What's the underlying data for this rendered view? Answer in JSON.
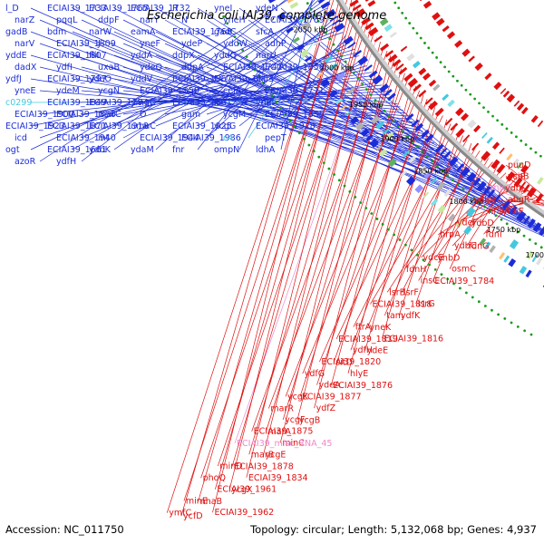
{
  "title": "Escherichia coli IAI39, complete genome",
  "footer": {
    "accession": "Accession: NC_011750",
    "info": "Topology: circular; Length: 5,132,068 bp; Genes: 4,937"
  },
  "colors": {
    "forward": "#1c2cd8",
    "reverse": "#e01010",
    "rna": "#ee88cc",
    "other": "#44c8e0",
    "backbone": "#888888",
    "dots": "#1a9a1a"
  },
  "kbp_labels": [
    "1700 kbp",
    "1750 kbp",
    "1800 kbp",
    "1850 kbp",
    "1900 kbp",
    "1950 kbp",
    "2000 kbp",
    "2050 kbp",
    "2100 kbp"
  ],
  "genes_forward": [
    {
      "name": "l_D",
      "color": "#1c2cd8"
    },
    {
      "name": "ECIAI39_1733",
      "color": "#1c2cd8"
    },
    {
      "name": "ECIAI39_1765",
      "color": "#1c2cd8"
    },
    {
      "name": "ECIAI39_1732",
      "color": "#1c2cd8"
    },
    {
      "name": "R",
      "color": "#1c2cd8"
    },
    {
      "name": "yneI",
      "color": "#1c2cd8"
    },
    {
      "name": "ydeN",
      "color": "#1c2cd8"
    },
    {
      "name": "narZ",
      "color": "#1c2cd8"
    },
    {
      "name": "pqqL",
      "color": "#1c2cd8"
    },
    {
      "name": "ddpF",
      "color": "#1c2cd8"
    },
    {
      "name": "narY",
      "color": "#1c2cd8"
    },
    {
      "name": "N",
      "color": "#1c2cd8"
    },
    {
      "name": "yneH",
      "color": "#1c2cd8"
    },
    {
      "name": "ECIAI39_1769",
      "color": "#1c2cd8"
    },
    {
      "name": "gadB",
      "color": "#1c2cd8"
    },
    {
      "name": "bdm",
      "color": "#1c2cd8"
    },
    {
      "name": "narW",
      "color": "#1c2cd8"
    },
    {
      "name": "eamA",
      "color": "#1c2cd8"
    },
    {
      "name": "ECIAI39_1768",
      "color": "#1c2cd8"
    },
    {
      "name": "gadC",
      "color": "#1c2cd8"
    },
    {
      "name": "sfcA",
      "color": "#1c2cd8"
    },
    {
      "name": "narV",
      "color": "#1c2cd8"
    },
    {
      "name": "ECIAI39_1809",
      "color": "#1c2cd8"
    },
    {
      "name": "J",
      "color": "#1c2cd8"
    },
    {
      "name": "yneF",
      "color": "#1c2cd8"
    },
    {
      "name": "ydeP",
      "color": "#1c2cd8"
    },
    {
      "name": "yddW",
      "color": "#1c2cd8"
    },
    {
      "name": "adhP",
      "color": "#1c2cd8"
    },
    {
      "name": "yddE",
      "color": "#1c2cd8"
    },
    {
      "name": "ECIAI39_1807",
      "color": "#1c2cd8"
    },
    {
      "name": "fliI",
      "color": "#1c2cd8"
    },
    {
      "name": "yddA",
      "color": "#1c2cd8"
    },
    {
      "name": "ddpX",
      "color": "#1c2cd8"
    },
    {
      "name": "yddG",
      "color": "#1c2cd8"
    },
    {
      "name": "narU",
      "color": "#1c2cd8"
    },
    {
      "name": "dadX",
      "color": "#1c2cd8"
    },
    {
      "name": "ydfI",
      "color": "#1c2cd8"
    },
    {
      "name": "uxaB",
      "color": "#1c2cd8"
    },
    {
      "name": "ydeQ",
      "color": "#1c2cd8"
    },
    {
      "name": "ddpA",
      "color": "#1c2cd8"
    },
    {
      "name": "ECIAI39_1741",
      "color": "#1c2cd8"
    },
    {
      "name": "ECIAI39_1858",
      "color": "#1c2cd8"
    },
    {
      "name": "ydfJ",
      "color": "#1c2cd8"
    },
    {
      "name": "ECIAI39_1797",
      "color": "#1c2cd8"
    },
    {
      "name": "ydeO",
      "color": "#1c2cd8"
    },
    {
      "name": "yddV",
      "color": "#1c2cd8"
    },
    {
      "name": "ECIAI39_1867",
      "color": "#1c2cd8"
    },
    {
      "name": "ECIAI39_1803",
      "color": "#1c2cd8"
    },
    {
      "name": "fliJ",
      "color": "#1c2cd8"
    },
    {
      "name": "yneE",
      "color": "#1c2cd8"
    },
    {
      "name": "ydeM",
      "color": "#1c2cd8"
    },
    {
      "name": "ycgN",
      "color": "#1c2cd8"
    },
    {
      "name": "ECIAI39_1850",
      "color": "#1c2cd8"
    },
    {
      "name": "dcp",
      "color": "#1c2cd8"
    },
    {
      "name": "celA",
      "color": "#1c2cd8"
    },
    {
      "name": "ECIAI39_1771",
      "color": "#1c2cd8"
    },
    {
      "name": "c0299",
      "color": "#44c8e0"
    },
    {
      "name": "ECIAI39_1849",
      "color": "#1c2cd8"
    },
    {
      "name": "ECIAI39_1794",
      "color": "#1c2cd8"
    },
    {
      "name": "ymgC",
      "color": "#1c2cd8"
    },
    {
      "name": "ECIAI39_1861",
      "color": "#1c2cd8"
    },
    {
      "name": "K",
      "color": "#1c2cd8"
    },
    {
      "name": "ydeI",
      "color": "#1c2cd8"
    },
    {
      "name": "ECIAI39_1900",
      "color": "#1c2cd8"
    },
    {
      "name": "ECIAI39_1856",
      "color": "#1c2cd8"
    },
    {
      "name": "marC",
      "color": "#1c2cd8"
    },
    {
      "name": "O",
      "color": "#1c2cd8"
    },
    {
      "name": "gam",
      "color": "#1c2cd8"
    },
    {
      "name": "ycgM",
      "color": "#1c2cd8"
    },
    {
      "name": "ECIAI39_1855",
      "color": "#1c2cd8"
    },
    {
      "name": "ECIAI39_1923",
      "color": "#1c2cd8"
    },
    {
      "name": "ECIAI39_1871",
      "color": "#1c2cd8"
    },
    {
      "name": "ECIAI39_1918",
      "color": "#1c2cd8"
    },
    {
      "name": "umuC",
      "color": "#1c2cd8"
    },
    {
      "name": "ECIAI39_1925",
      "color": "#1c2cd8"
    },
    {
      "name": "ycgG",
      "color": "#1c2cd8"
    },
    {
      "name": "ECIAI39_1928",
      "color": "#1c2cd8"
    },
    {
      "name": "icd",
      "color": "#1c2cd8"
    },
    {
      "name": "ECIAI39_1940",
      "color": "#1c2cd8"
    },
    {
      "name": "int",
      "color": "#1c2cd8"
    },
    {
      "name": "ECIAI39_1944",
      "color": "#1c2cd8"
    },
    {
      "name": "ECIAI39_1986",
      "color": "#1c2cd8"
    },
    {
      "name": "c4",
      "color": "#44c8e0"
    },
    {
      "name": "pepT",
      "color": "#1c2cd8"
    },
    {
      "name": "ogt",
      "color": "#1c2cd8"
    },
    {
      "name": "ECIAI39_1661",
      "color": "#1c2cd8"
    },
    {
      "name": "ydbK",
      "color": "#1c2cd8"
    },
    {
      "name": "ydaM",
      "color": "#1c2cd8"
    },
    {
      "name": "fnr",
      "color": "#1c2cd8"
    },
    {
      "name": "ompN",
      "color": "#1c2cd8"
    },
    {
      "name": "ldhA",
      "color": "#1c2cd8"
    },
    {
      "name": "azoR",
      "color": "#1c2cd8"
    },
    {
      "name": "ydfH",
      "color": "#1c2cd8"
    }
  ],
  "genes_reverse": [
    {
      "name": "puuD",
      "color": "#e01010"
    },
    {
      "name": "pspB",
      "color": "#e01010"
    },
    {
      "name": "ycjP",
      "color": "#e01010"
    },
    {
      "name": "micC",
      "color": "#ee88cc"
    },
    {
      "name": "ydbJ",
      "color": "#e01010"
    },
    {
      "name": "abgR",
      "color": "#e01010"
    },
    {
      "name": "ydbH",
      "color": "#e01010"
    },
    {
      "name": "nhoA",
      "color": "#e01010"
    },
    {
      "name": "ynbE",
      "color": "#e01010"
    },
    {
      "name": "ydcF",
      "color": "#e01010"
    },
    {
      "name": "ydbD",
      "color": "#e01010"
    },
    {
      "name": "fdnI",
      "color": "#e01010"
    },
    {
      "name": "hrpA",
      "color": "#e01010"
    },
    {
      "name": "ydbC",
      "color": "#e01010"
    },
    {
      "name": "fdnG",
      "color": "#e01010"
    },
    {
      "name": "ydcE",
      "color": "#e01010"
    },
    {
      "name": "ynbD",
      "color": "#e01010"
    },
    {
      "name": "osmC",
      "color": "#e01010"
    },
    {
      "name": "fdnH",
      "color": "#e01010"
    },
    {
      "name": "insC",
      "color": "#e01010"
    },
    {
      "name": "ECIAI39_1784",
      "color": "#e01010"
    },
    {
      "name": "lsrB",
      "color": "#e01010"
    },
    {
      "name": "lsrF",
      "color": "#e01010"
    },
    {
      "name": "lsrG",
      "color": "#e01010"
    },
    {
      "name": "ECIAI39_1818",
      "color": "#e01010"
    },
    {
      "name": "tam",
      "color": "#e01010"
    },
    {
      "name": "ydfK",
      "color": "#e01010"
    },
    {
      "name": "ftrA",
      "color": "#e01010"
    },
    {
      "name": "yneK",
      "color": "#e01010"
    },
    {
      "name": "ECIAI39_1816",
      "color": "#e01010"
    },
    {
      "name": "ECIAI39_1819",
      "color": "#e01010"
    },
    {
      "name": "ydfH",
      "color": "#e01010"
    },
    {
      "name": "ydeE",
      "color": "#e01010"
    },
    {
      "name": "ECIAI39_1820",
      "color": "#e01010"
    },
    {
      "name": "sitD",
      "color": "#e01010"
    },
    {
      "name": "hlyE",
      "color": "#e01010"
    },
    {
      "name": "ydfG",
      "color": "#e01010"
    },
    {
      "name": "ydeA",
      "color": "#e01010"
    },
    {
      "name": "ECIAI39_1876",
      "color": "#e01010"
    },
    {
      "name": "ycgK",
      "color": "#e01010"
    },
    {
      "name": "ECIAI39_1877",
      "color": "#e01010"
    },
    {
      "name": "ydfZ",
      "color": "#e01010"
    },
    {
      "name": "marR",
      "color": "#e01010"
    },
    {
      "name": "ycgF",
      "color": "#e01010"
    },
    {
      "name": "ycgB",
      "color": "#e01010"
    },
    {
      "name": "ECIAI39_1875",
      "color": "#e01010"
    },
    {
      "name": "marA",
      "color": "#e01010"
    },
    {
      "name": "minC",
      "color": "#e01010"
    },
    {
      "name": "ECIAI39_misc_RNA_45",
      "color": "#ee88cc"
    },
    {
      "name": "marB",
      "color": "#e01010"
    },
    {
      "name": "ycgE",
      "color": "#e01010"
    },
    {
      "name": "minD",
      "color": "#e01010"
    },
    {
      "name": "ECIAI39_1878",
      "color": "#e01010"
    },
    {
      "name": "ECIAI39_1834",
      "color": "#e01010"
    },
    {
      "name": "phoQ",
      "color": "#e01010"
    },
    {
      "name": "ECIAI39_1961",
      "color": "#e01010"
    },
    {
      "name": "ycgX",
      "color": "#e01010"
    },
    {
      "name": "minE",
      "color": "#e01010"
    },
    {
      "name": "nhaB",
      "color": "#e01010"
    },
    {
      "name": "ECIAI39_1962",
      "color": "#e01010"
    },
    {
      "name": "ymfC",
      "color": "#e01010"
    },
    {
      "name": "ycfD",
      "color": "#e01010"
    }
  ]
}
